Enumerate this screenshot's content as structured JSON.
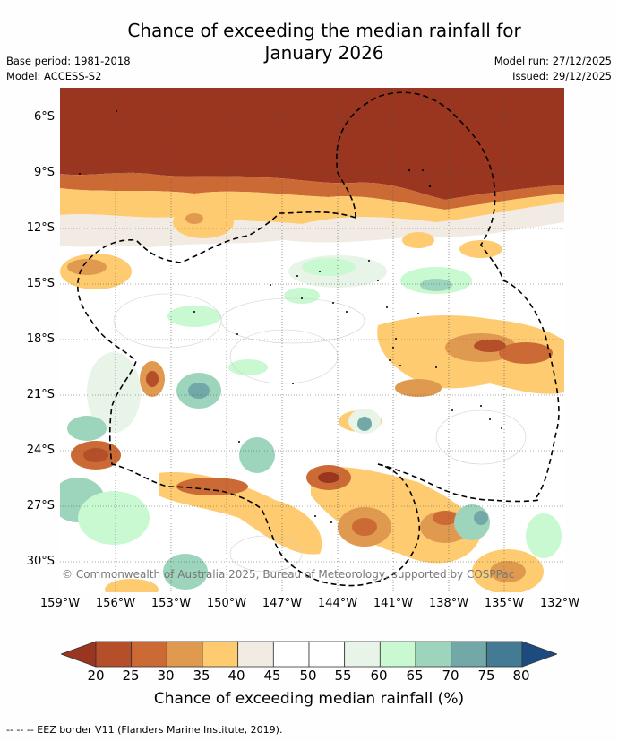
{
  "title_line1": "Chance of exceeding the median rainfall for",
  "title_line2": "January 2026",
  "meta_left": [
    "Base period: 1981-2018",
    "Model: ACCESS-S2"
  ],
  "meta_right": [
    "Model run: 27/12/2025",
    "Issued: 29/12/2025"
  ],
  "lat_labels": [
    "6°S",
    "9°S",
    "12°S",
    "15°S",
    "18°S",
    "21°S",
    "24°S",
    "27°S",
    "30°S"
  ],
  "lon_labels": [
    "159°W",
    "156°W",
    "153°W",
    "150°W",
    "147°W",
    "144°W",
    "141°W",
    "138°W",
    "135°W",
    "132°W"
  ],
  "copyright": "© Commonwealth of Australia 2025, Bureau of Meteorology, supported by COSPPac",
  "colorbar": {
    "ticks": [
      "20",
      "25",
      "30",
      "35",
      "40",
      "45",
      "50",
      "55",
      "60",
      "65",
      "70",
      "75",
      "80"
    ],
    "colors": [
      "#9a3520",
      "#b44f2a",
      "#cc6a35",
      "#e09a50",
      "#fecb70",
      "#f1ebe3",
      "#ffffff",
      "#ffffff",
      "#e8f4e8",
      "#c8f9d0",
      "#9dd4bc",
      "#72a8a8",
      "#437a94",
      "#1d4b7f"
    ],
    "label": "Chance of exceeding median rainfall (%)"
  },
  "legend_note": "-- -- -- EEZ border V11 (Flanders Marine Institute, 2019)."
}
